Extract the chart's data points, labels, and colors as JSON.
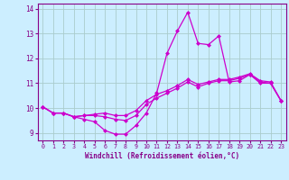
{
  "xlabel": "Windchill (Refroidissement éolien,°C)",
  "x": [
    0,
    1,
    2,
    3,
    4,
    5,
    6,
    7,
    8,
    9,
    10,
    11,
    12,
    13,
    14,
    15,
    16,
    17,
    18,
    19,
    20,
    21,
    22,
    23
  ],
  "line1": [
    10.05,
    9.8,
    9.8,
    9.65,
    9.55,
    9.45,
    9.1,
    8.95,
    8.95,
    9.3,
    9.8,
    10.6,
    12.2,
    13.1,
    13.85,
    12.6,
    12.55,
    12.9,
    11.05,
    11.1,
    11.35,
    11.0,
    11.0,
    10.3
  ],
  "line2": [
    10.05,
    9.8,
    9.8,
    9.65,
    9.7,
    9.7,
    9.65,
    9.55,
    9.5,
    9.7,
    10.15,
    10.4,
    10.6,
    10.8,
    11.05,
    10.85,
    11.0,
    11.1,
    11.1,
    11.2,
    11.35,
    11.05,
    11.0,
    10.3
  ],
  "line3": [
    10.05,
    9.8,
    9.8,
    9.65,
    9.7,
    9.75,
    9.8,
    9.7,
    9.7,
    9.9,
    10.3,
    10.55,
    10.7,
    10.9,
    11.15,
    10.95,
    11.05,
    11.15,
    11.15,
    11.25,
    11.38,
    11.1,
    11.05,
    10.3
  ],
  "line_color": "#cc00cc",
  "bg_color": "#cceeff",
  "grid_color": "#aacccc",
  "text_color": "#880088",
  "ylim": [
    8.7,
    14.2
  ],
  "xlim": [
    -0.5,
    23.5
  ],
  "yticks": [
    9,
    10,
    11,
    12,
    13,
    14
  ],
  "xticks": [
    0,
    1,
    2,
    3,
    4,
    5,
    6,
    7,
    8,
    9,
    10,
    11,
    12,
    13,
    14,
    15,
    16,
    17,
    18,
    19,
    20,
    21,
    22,
    23
  ]
}
